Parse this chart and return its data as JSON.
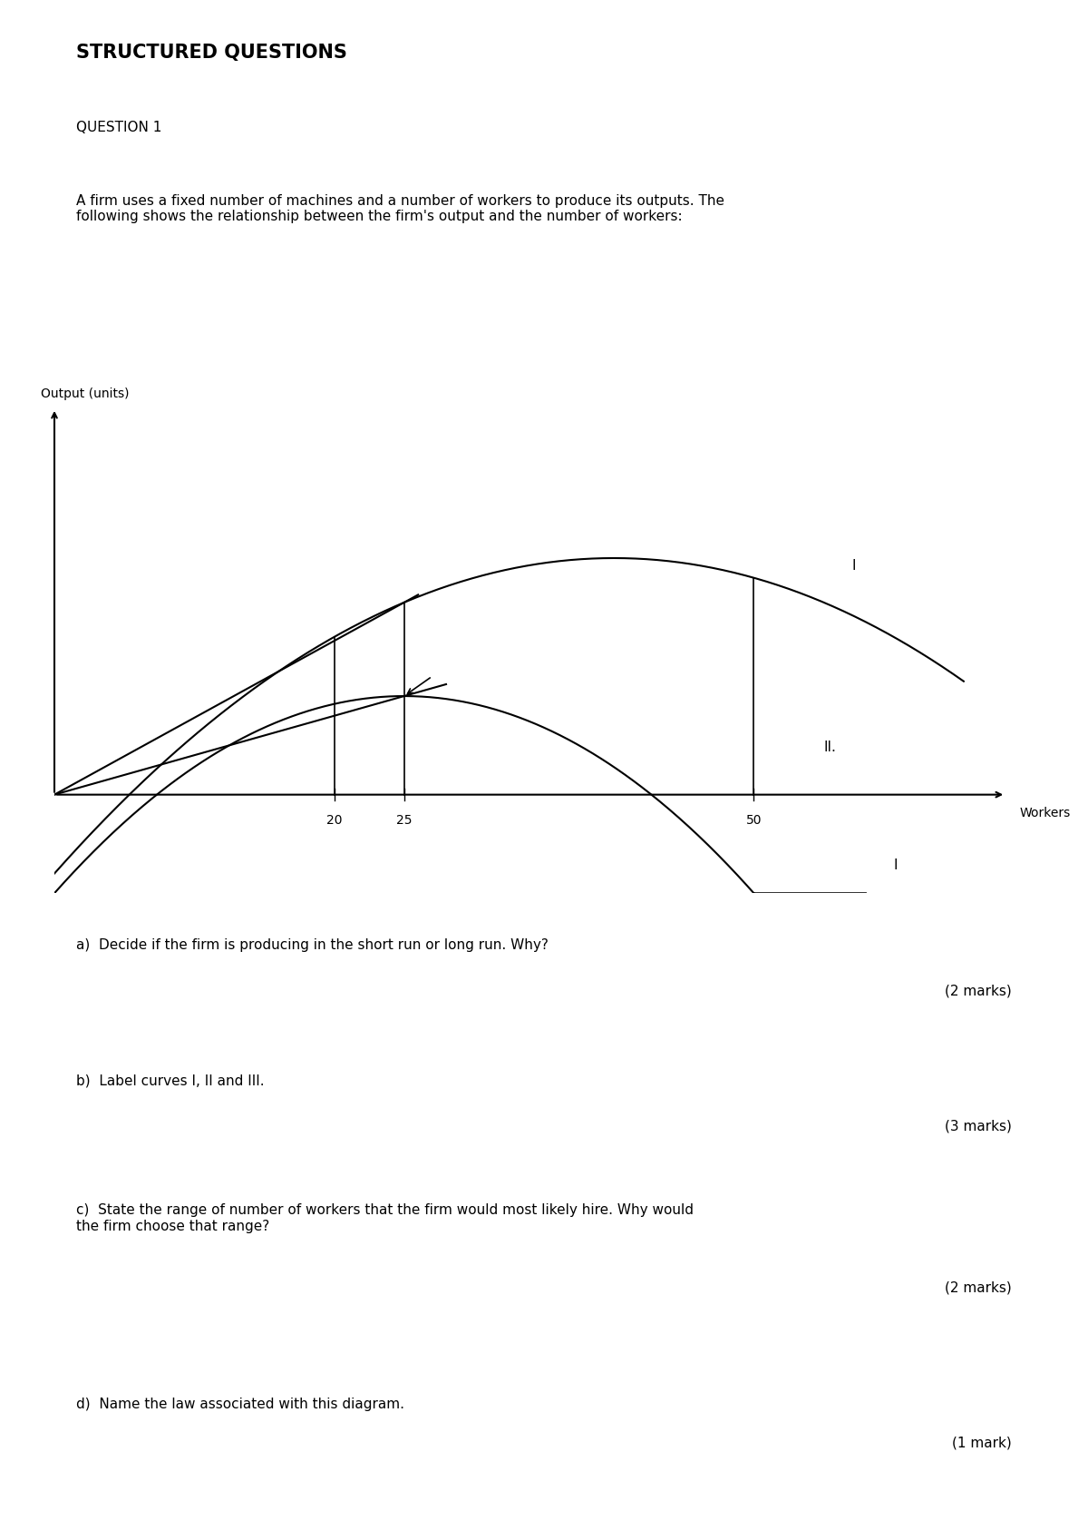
{
  "title": "STRUCTURED QUESTIONS",
  "question_number": "QUESTION 1",
  "question_text": "A firm uses a fixed number of machines and a number of workers to produce its outputs. The\nfollowing shows the relationship between the firm's output and the number of workers:",
  "ylabel": "Output (units)",
  "xlabel": "Workers",
  "x_ticks": [
    20,
    25,
    50
  ],
  "curve_label_I": "I",
  "curve_label_II": "II.",
  "curve_label_I_bottom": "I",
  "vline_x1": 20,
  "vline_x2": 25,
  "vline_x3": 50,
  "questions": [
    {
      "letter": "a)",
      "text": "Decide if the firm is producing in the short run or long run. Why?",
      "marks": "(2 marks)"
    },
    {
      "letter": "b)",
      "text": "Label curves I, II and III.",
      "marks": "(3 marks)"
    },
    {
      "letter": "c)",
      "text": "State the range of number of workers that the firm would most likely hire. Why would\nthe firm choose that range?",
      "marks": "(2 marks)"
    },
    {
      "letter": "d)",
      "text": "Name the law associated with this diagram.",
      "marks": "(1 mark)"
    }
  ],
  "background_color": "#ffffff",
  "text_color": "#000000",
  "font_size_title": 14,
  "font_size_body": 11
}
